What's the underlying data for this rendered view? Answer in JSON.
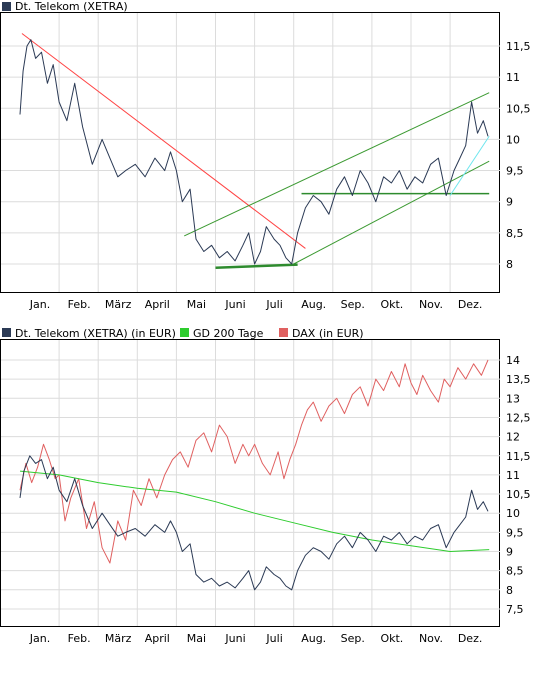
{
  "chart_data": [
    {
      "type": "line",
      "title": "Dt. Telekom (XETRA)",
      "months": [
        "Jan.",
        "Feb.",
        "März",
        "April",
        "Mai",
        "Juni",
        "Juli",
        "Aug.",
        "Sep.",
        "Okt.",
        "Nov.",
        "Dez."
      ],
      "y_ticks": [
        "11,5",
        "11",
        "10,5",
        "10",
        "9,5",
        "9",
        "8,5",
        "8"
      ],
      "ylim": [
        7.6,
        11.9
      ],
      "grid": true,
      "legend": "top-left",
      "colors": {
        "price": "#2b3a55",
        "downtrend": "#ff4444",
        "channel": "#3c9a32",
        "support": "#2e8b2e",
        "short_trend": "#6ee6ee"
      },
      "series": [
        {
          "name": "Dt. Telekom (XETRA)",
          "x": [
            0,
            0.08,
            0.18,
            0.28,
            0.4,
            0.55,
            0.7,
            0.85,
            1,
            1.2,
            1.4,
            1.6,
            1.85,
            2.1,
            2.3,
            2.5,
            2.7,
            2.95,
            3.2,
            3.45,
            3.7,
            3.85,
            4,
            4.15,
            4.35,
            4.5,
            4.7,
            4.9,
            5.1,
            5.3,
            5.5,
            5.7,
            5.85,
            6,
            6.15,
            6.3,
            6.5,
            6.65,
            6.8,
            6.95,
            7.1,
            7.3,
            7.5,
            7.7,
            7.9,
            8.1,
            8.3,
            8.5,
            8.7,
            8.9,
            9.1,
            9.3,
            9.5,
            9.7,
            9.9,
            10.1,
            10.3,
            10.5,
            10.7,
            10.9,
            11.1,
            11.25,
            11.4,
            11.55,
            11.7,
            11.85,
            11.97
          ],
          "values": [
            10.4,
            11.1,
            11.5,
            11.6,
            11.3,
            11.4,
            10.9,
            11.2,
            10.6,
            10.3,
            10.9,
            10.2,
            9.6,
            10.0,
            9.7,
            9.4,
            9.5,
            9.6,
            9.4,
            9.7,
            9.5,
            9.8,
            9.5,
            9.0,
            9.2,
            8.4,
            8.2,
            8.3,
            8.1,
            8.2,
            8.05,
            8.3,
            8.5,
            8.0,
            8.2,
            8.6,
            8.4,
            8.3,
            8.1,
            8.0,
            8.5,
            8.9,
            9.1,
            9.0,
            8.8,
            9.2,
            9.4,
            9.1,
            9.5,
            9.3,
            9.0,
            9.4,
            9.3,
            9.5,
            9.2,
            9.4,
            9.3,
            9.6,
            9.7,
            9.1,
            9.5,
            9.7,
            9.9,
            10.6,
            10.1,
            10.3,
            10.05
          ]
        }
      ],
      "trendlines": [
        {
          "name": "downtrend",
          "x": [
            0.05,
            7.3
          ],
          "y": [
            11.7,
            8.25
          ]
        },
        {
          "name": "channel-upper",
          "x": [
            4.2,
            12.0
          ],
          "y": [
            8.45,
            10.75
          ]
        },
        {
          "name": "channel-lower",
          "x": [
            7.0,
            12.0
          ],
          "y": [
            8.0,
            9.65
          ]
        },
        {
          "name": "support-horizontal",
          "x": [
            7.2,
            12.0
          ],
          "y": [
            9.13,
            9.13
          ]
        },
        {
          "name": "support-bottom",
          "x": [
            5.0,
            7.1
          ],
          "y": [
            7.94,
            7.99
          ]
        },
        {
          "name": "short-trend",
          "x": [
            11.0,
            12.0
          ],
          "y": [
            9.1,
            10.05
          ]
        }
      ]
    },
    {
      "type": "line",
      "legend_items": [
        "Dt. Telekom (XETRA) (in EUR)",
        "GD 200 Tage",
        "DAX (in EUR)"
      ],
      "months": [
        "Jan.",
        "Feb.",
        "März",
        "April",
        "Mai",
        "Juni",
        "Juli",
        "Aug.",
        "Sep.",
        "Okt.",
        "Nov.",
        "Dez."
      ],
      "y_ticks": [
        "14",
        "13,5",
        "13",
        "12,5",
        "12",
        "11,5",
        "11",
        "10,5",
        "10",
        "9,5",
        "9",
        "8,5",
        "8",
        "7,5"
      ],
      "ylim": [
        7.3,
        14.2
      ],
      "grid": true,
      "legend": "top-left",
      "colors": {
        "telekom": "#2b3a55",
        "gd200": "#2ecc2e",
        "dax": "#e06060"
      },
      "series": [
        {
          "name": "Dt. Telekom (XETRA) (in EUR)",
          "x": [
            0,
            0.1,
            0.25,
            0.4,
            0.55,
            0.7,
            0.85,
            1,
            1.2,
            1.4,
            1.6,
            1.85,
            2.1,
            2.3,
            2.5,
            2.7,
            2.95,
            3.2,
            3.45,
            3.7,
            3.85,
            4,
            4.15,
            4.35,
            4.5,
            4.7,
            4.9,
            5.1,
            5.3,
            5.5,
            5.7,
            5.85,
            6,
            6.15,
            6.3,
            6.5,
            6.65,
            6.8,
            6.95,
            7.1,
            7.3,
            7.5,
            7.7,
            7.9,
            8.1,
            8.3,
            8.5,
            8.7,
            8.9,
            9.1,
            9.3,
            9.5,
            9.7,
            9.9,
            10.1,
            10.3,
            10.5,
            10.7,
            10.9,
            11.1,
            11.25,
            11.4,
            11.55,
            11.7,
            11.85,
            11.97
          ],
          "values": [
            10.4,
            11.1,
            11.5,
            11.3,
            11.4,
            10.9,
            11.2,
            10.6,
            10.3,
            10.9,
            10.2,
            9.6,
            10.0,
            9.7,
            9.4,
            9.5,
            9.6,
            9.4,
            9.7,
            9.5,
            9.8,
            9.5,
            9.0,
            9.2,
            8.4,
            8.2,
            8.3,
            8.1,
            8.2,
            8.05,
            8.3,
            8.5,
            8.0,
            8.2,
            8.6,
            8.4,
            8.3,
            8.1,
            8.0,
            8.5,
            8.9,
            9.1,
            9.0,
            8.8,
            9.2,
            9.4,
            9.1,
            9.5,
            9.3,
            9.0,
            9.4,
            9.3,
            9.5,
            9.2,
            9.4,
            9.3,
            9.6,
            9.7,
            9.1,
            9.5,
            9.7,
            9.9,
            10.6,
            10.1,
            10.3,
            10.05
          ]
        },
        {
          "name": "GD 200 Tage",
          "x": [
            0,
            1,
            2,
            3,
            4,
            5,
            6,
            7,
            8,
            9,
            10,
            11,
            12
          ],
          "values": [
            11.1,
            11.0,
            10.8,
            10.65,
            10.55,
            10.3,
            10.0,
            9.75,
            9.5,
            9.3,
            9.15,
            9.0,
            9.05
          ]
        },
        {
          "name": "DAX (in EUR)",
          "x": [
            0,
            0.15,
            0.3,
            0.45,
            0.6,
            0.75,
            0.9,
            1.0,
            1.15,
            1.3,
            1.5,
            1.7,
            1.9,
            2.1,
            2.3,
            2.5,
            2.7,
            2.9,
            3.1,
            3.3,
            3.5,
            3.7,
            3.9,
            4.1,
            4.3,
            4.5,
            4.7,
            4.9,
            5.1,
            5.3,
            5.5,
            5.7,
            5.85,
            6.0,
            6.2,
            6.4,
            6.6,
            6.75,
            6.9,
            7.05,
            7.2,
            7.35,
            7.5,
            7.7,
            7.9,
            8.1,
            8.3,
            8.5,
            8.7,
            8.9,
            9.1,
            9.3,
            9.5,
            9.7,
            9.85,
            10.0,
            10.15,
            10.3,
            10.5,
            10.7,
            10.85,
            11.0,
            11.2,
            11.4,
            11.6,
            11.8,
            11.97
          ],
          "values": [
            10.6,
            11.3,
            10.8,
            11.2,
            11.8,
            11.4,
            10.9,
            11.0,
            9.8,
            10.4,
            10.9,
            9.6,
            10.3,
            9.1,
            8.7,
            9.8,
            9.3,
            10.6,
            10.2,
            10.9,
            10.4,
            11.0,
            11.4,
            11.6,
            11.2,
            11.9,
            12.1,
            11.6,
            12.3,
            12.0,
            11.3,
            11.8,
            11.5,
            11.8,
            11.3,
            11.0,
            11.6,
            10.9,
            11.4,
            11.8,
            12.3,
            12.7,
            12.9,
            12.4,
            12.8,
            13.0,
            12.6,
            13.1,
            13.3,
            12.8,
            13.5,
            13.2,
            13.7,
            13.3,
            13.9,
            13.4,
            13.1,
            13.6,
            13.2,
            12.9,
            13.5,
            13.3,
            13.8,
            13.5,
            13.9,
            13.6,
            14.0
          ]
        }
      ]
    }
  ]
}
